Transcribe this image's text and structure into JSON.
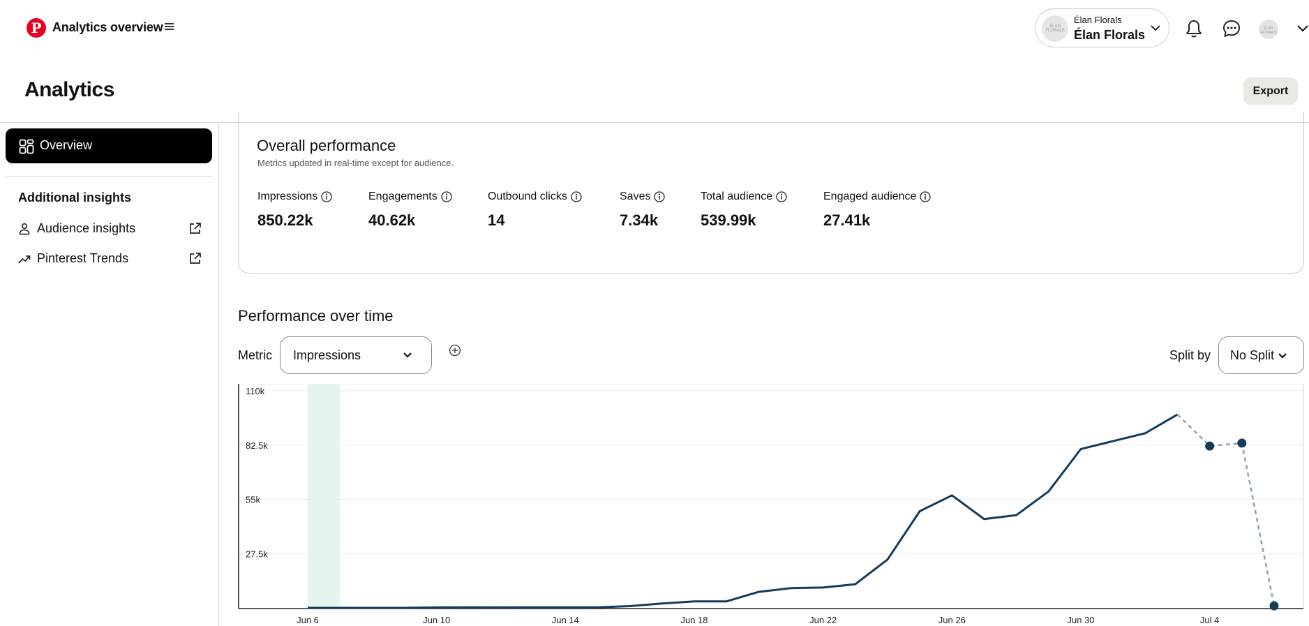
{
  "header": {
    "app_title": "Analytics overview",
    "logo_glyph": "P",
    "account": {
      "small": "Élan Florals",
      "name": "Élan Florals",
      "avatar_text": "ÉLAN FLORALS"
    },
    "user_avatar_text": "ÉLAN FLORALS",
    "icons": [
      "pinterest-logo",
      "menu-icon",
      "chevron-down-icon",
      "bell-icon",
      "chat-icon",
      "chevron-down-icon"
    ]
  },
  "page": {
    "title": "Analytics",
    "export_label": "Export"
  },
  "sidebar": {
    "overview_label": "Overview",
    "insights_heading": "Additional insights",
    "links": [
      {
        "label": "Audience insights",
        "icon": "person-icon"
      },
      {
        "label": "Pinterest Trends",
        "icon": "trend-icon"
      }
    ]
  },
  "overall": {
    "title": "Overall performance",
    "subtitle": "Metrics updated in real-time except for audience.",
    "metrics": [
      {
        "label": "Impressions",
        "value": "850.22k"
      },
      {
        "label": "Engagements",
        "value": "40.62k"
      },
      {
        "label": "Outbound clicks",
        "value": "14"
      },
      {
        "label": "Saves",
        "value": "7.34k"
      },
      {
        "label": "Total audience",
        "value": "539.99k"
      },
      {
        "label": "Engaged audience",
        "value": "27.41k"
      }
    ]
  },
  "over_time": {
    "title": "Performance over time",
    "metric_label": "Metric",
    "metric_value": "Impressions",
    "split_label": "Split by",
    "split_value": "No Split"
  },
  "chart_data": {
    "type": "line",
    "x_tick_labels": [
      "Jun 6",
      "Jun 10",
      "Jun 14",
      "Jun 18",
      "Jun 22",
      "Jun 26",
      "Jun 30",
      "Jul 4"
    ],
    "y_tick_labels": [
      "110k",
      "82.5k",
      "55k",
      "27.5k"
    ],
    "y_ticks": [
      110000,
      82500,
      55000,
      27500
    ],
    "ylim": [
      0,
      110000
    ],
    "grid": true,
    "line_color": "#133b5c",
    "highlight_color": "#e4f5ee",
    "highlight_range": [
      "Jun 6",
      "Jun 7"
    ],
    "x": [
      "Jun 6",
      "Jun 7",
      "Jun 8",
      "Jun 9",
      "Jun 10",
      "Jun 11",
      "Jun 12",
      "Jun 13",
      "Jun 14",
      "Jun 15",
      "Jun 16",
      "Jun 17",
      "Jun 18",
      "Jun 19",
      "Jun 20",
      "Jun 21",
      "Jun 22",
      "Jun 23",
      "Jun 24",
      "Jun 25",
      "Jun 26",
      "Jun 27",
      "Jun 28",
      "Jun 29",
      "Jun 30",
      "Jul 1",
      "Jul 2",
      "Jul 3",
      "Jul 4",
      "Jul 5",
      "Jul 6"
    ],
    "solid_values": [
      0,
      0,
      0,
      0,
      200,
      300,
      200,
      300,
      300,
      300,
      900,
      2200,
      3300,
      3300,
      8100,
      10000,
      10300,
      12000,
      24500,
      49000,
      57000,
      45000,
      47000,
      59000,
      80500,
      84500,
      88500,
      98000,
      null,
      null,
      null
    ],
    "dashed_values": [
      null,
      null,
      null,
      null,
      null,
      null,
      null,
      null,
      null,
      null,
      null,
      null,
      null,
      null,
      null,
      null,
      null,
      null,
      null,
      null,
      null,
      null,
      null,
      null,
      null,
      null,
      null,
      98000,
      82000,
      83500,
      1000
    ],
    "markers": [
      {
        "x": "Jul 4",
        "y": 82000
      },
      {
        "x": "Jul 5",
        "y": 83500
      },
      {
        "x": "Jul 6",
        "y": 1000
      }
    ]
  }
}
